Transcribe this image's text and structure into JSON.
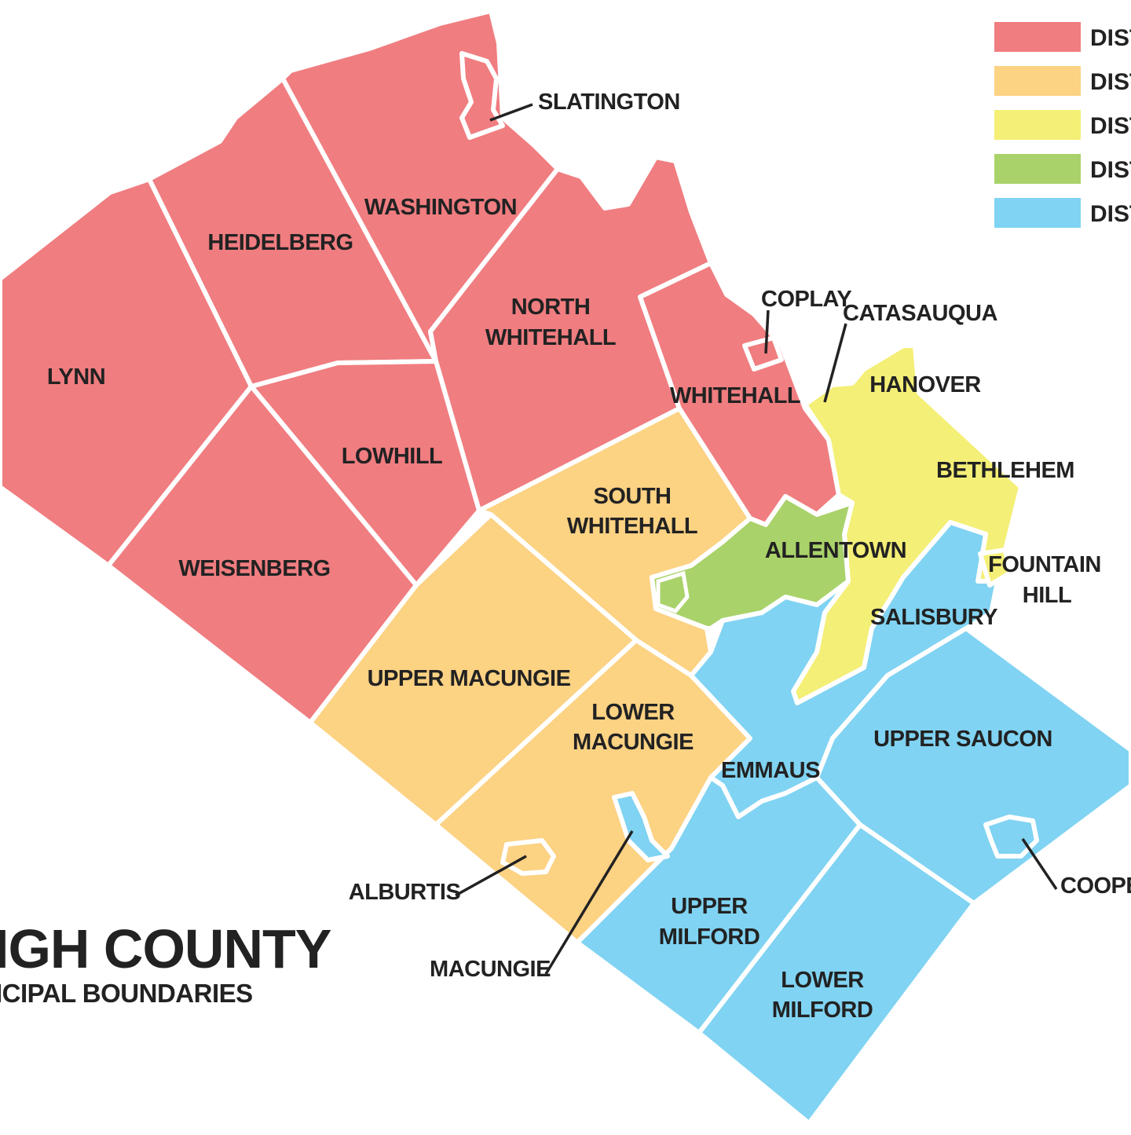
{
  "colors": {
    "district_1": "#f07d80",
    "district_2": "#fcd283",
    "district_3": "#f4ef76",
    "district_4": "#a9d26a",
    "district_5": "#80d3f2",
    "background": "#ffffff",
    "label": "#222222"
  },
  "title": {
    "main": "IGH COUNTY",
    "sub": "ICIPAL BOUNDARIES"
  },
  "legend": [
    {
      "label": "DIST",
      "color_key": "district_1"
    },
    {
      "label": "DIST",
      "color_key": "district_2"
    },
    {
      "label": "DIST",
      "color_key": "district_3"
    },
    {
      "label": "DIST",
      "color_key": "district_4"
    },
    {
      "label": "DIST",
      "color_key": "district_5"
    }
  ],
  "municipalities": {
    "lynn": {
      "label": "LYNN",
      "district": "district_1"
    },
    "heidelberg": {
      "label": "HEIDELBERG",
      "district": "district_1"
    },
    "washington": {
      "label": "WASHINGTON",
      "district": "district_1"
    },
    "slatington": {
      "label": "SLATINGTON",
      "district": "district_1"
    },
    "north_whitehall": {
      "label_line1": "NORTH",
      "label_line2": "WHITEHALL",
      "district": "district_1"
    },
    "lowhill": {
      "label": "LOWHILL",
      "district": "district_1"
    },
    "weisenberg": {
      "label": "WEISENBERG",
      "district": "district_1"
    },
    "whitehall": {
      "label": "WHITEHALL",
      "district": "district_1"
    },
    "coplay": {
      "label": "COPLAY",
      "district": "district_1"
    },
    "catasauqua": {
      "label": "CATASAUQUA",
      "district": "district_3"
    },
    "hanover": {
      "label": "HANOVER",
      "district": "district_3"
    },
    "bethlehem": {
      "label": "BETHLEHEM",
      "district": "district_3"
    },
    "fountain_hill": {
      "label_line1": "FOUNTAIN",
      "label_line2": "HILL",
      "district": "district_3"
    },
    "south_whitehall": {
      "label_line1": "SOUTH",
      "label_line2": "WHITEHALL",
      "district": "district_2"
    },
    "allentown": {
      "label": "ALLENTOWN",
      "district": "district_4"
    },
    "salisbury": {
      "label": "SALISBURY",
      "district": "district_5"
    },
    "upper_macungie": {
      "label": "UPPER MACUNGIE",
      "district": "district_2"
    },
    "lower_macungie": {
      "label_line1": "LOWER",
      "label_line2": "MACUNGIE",
      "district": "district_2"
    },
    "emmaus": {
      "label": "EMMAUS",
      "district": "district_5"
    },
    "upper_saucon": {
      "label": "UPPER SAUCON",
      "district": "district_5"
    },
    "alburtis": {
      "label": "ALBURTIS",
      "district": "district_2"
    },
    "macungie": {
      "label": "MACUNGIE",
      "district": "district_5"
    },
    "coopersburg": {
      "label": "COOPE",
      "district": "district_5"
    },
    "upper_milford": {
      "label_line1": "UPPER",
      "label_line2": "MILFORD",
      "district": "district_5"
    },
    "lower_milford": {
      "label_line1": "LOWER",
      "label_line2": "MILFORD",
      "district": "district_5"
    }
  }
}
